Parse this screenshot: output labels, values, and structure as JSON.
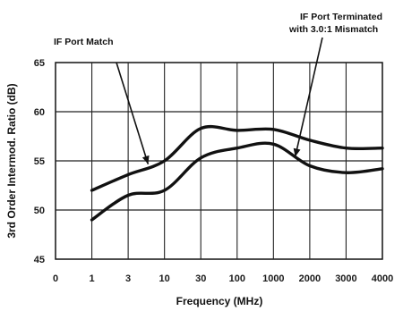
{
  "chart_data": {
    "type": "line",
    "title": "",
    "xlabel": "Frequency (MHz)",
    "ylabel": "3rd Order Intermod. Ratio (dB)",
    "x_categories": [
      "0",
      "1",
      "3",
      "10",
      "30",
      "100",
      "1000",
      "2000",
      "3000",
      "4000"
    ],
    "x": [
      "1",
      "3",
      "10",
      "30",
      "100",
      "1000",
      "2000",
      "3000",
      "4000"
    ],
    "ylim": [
      45,
      65
    ],
    "yticks": [
      "45",
      "50",
      "55",
      "60",
      "65"
    ],
    "grid": true,
    "legend": "none",
    "series": [
      {
        "name": "IF Port Match",
        "values": [
          52,
          53.6,
          55,
          58.3,
          58.1,
          58.2,
          57.1,
          56.3,
          56.3
        ]
      },
      {
        "name": "IF Port Terminated with 3.0:1 Mismatch",
        "values": [
          49,
          51.5,
          52,
          55.3,
          56.3,
          56.7,
          54.5,
          53.8,
          54.2
        ]
      }
    ],
    "annotations": [
      {
        "lines": [
          "IF Port Match"
        ],
        "series": 0
      },
      {
        "lines": [
          "IF Port Terminated",
          "with 3.0:1 Mismatch"
        ],
        "series": 1
      }
    ],
    "colors": {
      "line": "#111111",
      "grid": "#222222",
      "text": "#111111"
    }
  }
}
